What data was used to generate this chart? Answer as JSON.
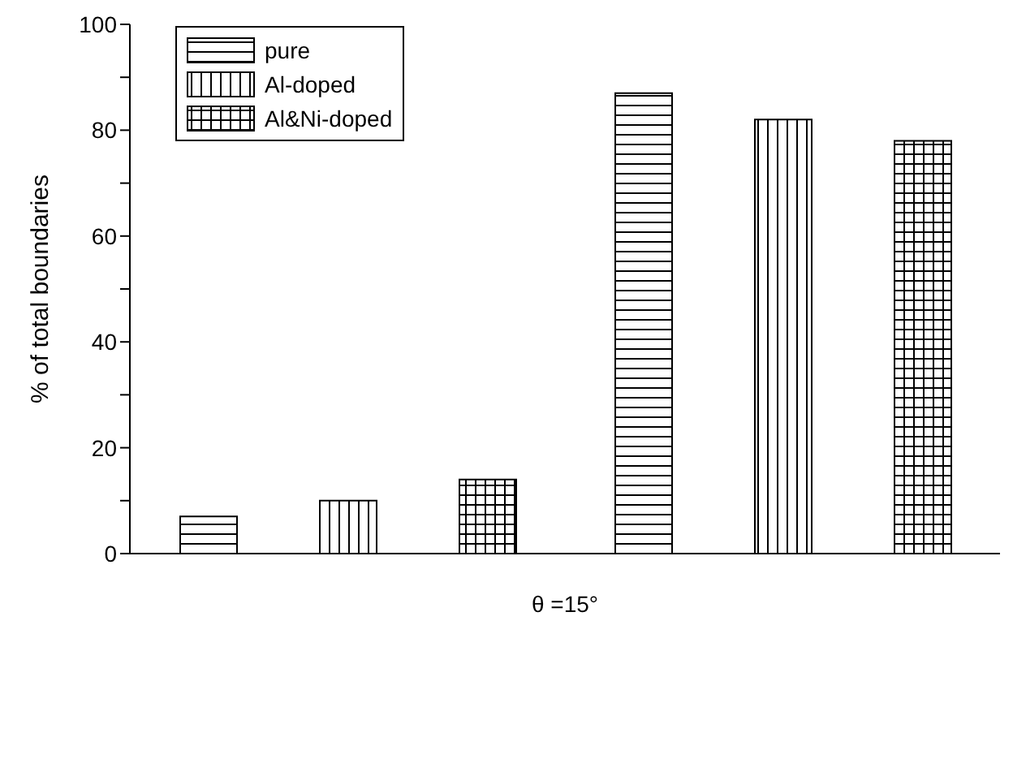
{
  "chart_data": {
    "type": "bar",
    "xlabel": "θ =15°",
    "ylabel": "% of total boundaries",
    "categories": [
      null,
      null
    ],
    "series": [
      {
        "name": "pure",
        "color": "#000000",
        "values": [
          7,
          87
        ]
      },
      {
        "name": "Al-doped",
        "color": "#000000",
        "values": [
          10,
          82
        ]
      },
      {
        "name": "Al&Ni-doped",
        "color": "#000000",
        "values": [
          14,
          78
        ]
      }
    ],
    "ylim": [
      0,
      100
    ],
    "yticks": [
      0,
      {
        "value": 10,
        "label": null
      },
      20,
      {
        "value": 30,
        "label": null
      },
      40,
      {
        "value": 50,
        "label": null
      },
      60,
      {
        "value": 70,
        "label": null
      },
      80,
      {
        "value": 90,
        "label": null
      },
      100
    ],
    "grid": false,
    "legend": "top left"
  }
}
